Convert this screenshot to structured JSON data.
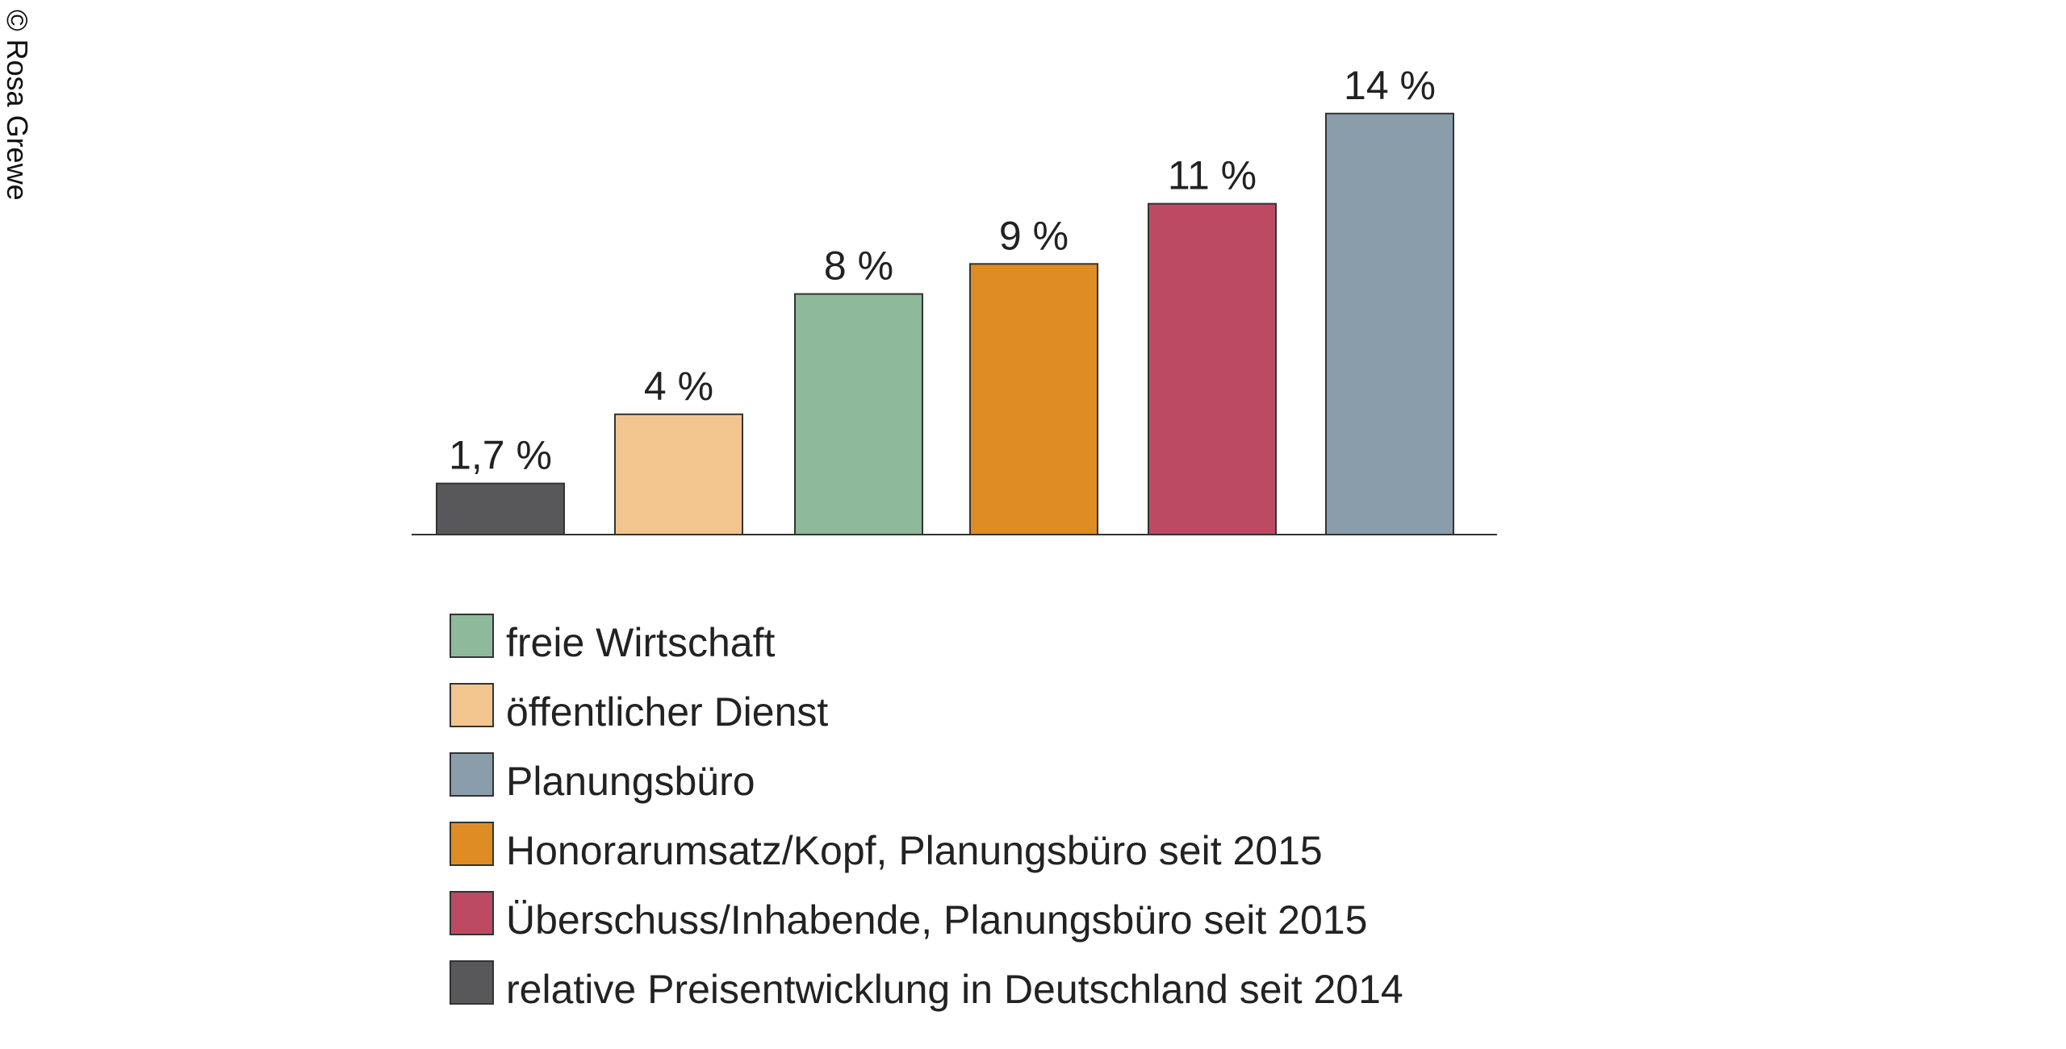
{
  "credit": "© Rosa Grewe",
  "chart_data": {
    "type": "bar",
    "title": "",
    "xlabel": "",
    "ylabel": "",
    "ylim": [
      0,
      14
    ],
    "grid": false,
    "legend_position": "bottom",
    "bars": [
      {
        "value": 1.7,
        "label": "1,7 %",
        "series": "relative Preisentwicklung in Deutschland seit 2014",
        "color": "#58585a"
      },
      {
        "value": 4,
        "label": "4 %",
        "series": "öffentlicher Dienst",
        "color": "#f2c58f"
      },
      {
        "value": 8,
        "label": "8 %",
        "series": "freie Wirtschaft",
        "color": "#8eb99b"
      },
      {
        "value": 9,
        "label": "9 %",
        "series": "Honorarumsatz/Kopf, Planungsbüro seit 2015",
        "color": "#de8c24"
      },
      {
        "value": 11,
        "label": "11 %",
        "series": "Überschuss/Inhabende, Planungsbüro seit 2015",
        "color": "#bc4a63"
      },
      {
        "value": 14,
        "label": "14 %",
        "series": "Planungsbüro",
        "color": "#8a9daa"
      }
    ],
    "legend": [
      {
        "label": "freie Wirtschaft",
        "color": "#8eb99b"
      },
      {
        "label": "öffentlicher Dienst",
        "color": "#f2c58f"
      },
      {
        "label": "Planungsbüro",
        "color": "#8a9daa"
      },
      {
        "label": "Honorarumsatz/Kopf, Planungsbüro seit 2015",
        "color": "#de8c24"
      },
      {
        "label": "Überschuss/Inhabende, Planungsbüro seit 2015",
        "color": "#bc4a63"
      },
      {
        "label": "relative Preisentwicklung in Deutschland seit 2014",
        "color": "#58585a"
      }
    ]
  }
}
